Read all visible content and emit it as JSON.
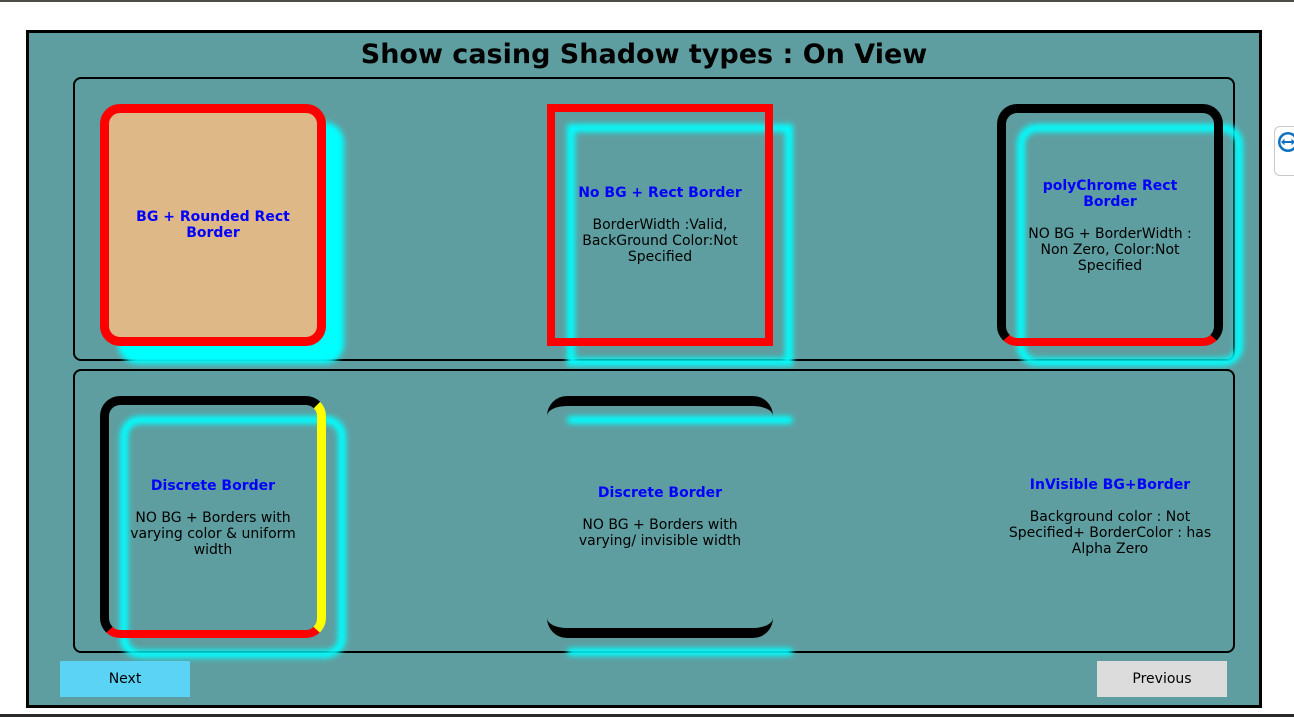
{
  "page": {
    "title": "Show casing Shadow types : On View"
  },
  "cards": {
    "bg_rounded": {
      "title": "BG + Rounded Rect Border",
      "description": ""
    },
    "no_bg_rect": {
      "title": "No BG + Rect Border",
      "description": "BorderWidth :Valid, BackGround Color:Not Specified"
    },
    "polychrome": {
      "title": "polyChrome Rect Border",
      "description": "NO BG + BorderWidth : Non Zero, Color:Not Specified"
    },
    "discrete_uniform": {
      "title": "Discrete Border",
      "description": "NO BG + Borders with varying color & uniform width"
    },
    "discrete_varying": {
      "title": "Discrete Border",
      "description": "NO BG + Borders with varying/ invisible width"
    },
    "invisible": {
      "title": "InVisible BG+Border",
      "description": "Background color : Not Specified+ BorderColor : has Alpha Zero"
    }
  },
  "buttons": {
    "next_label": "Next",
    "previous_label": "Previous"
  },
  "colors": {
    "page_background": "#5f9ea0",
    "card_background": "#deb887",
    "border_red": "#ff0000",
    "border_yellow": "#ffff00",
    "shadow_cyan": "#00ffff",
    "title_blue": "#0000ff",
    "next_button": "#5bd3f5",
    "previous_button": "#dcdcdc"
  },
  "icons": {
    "side_tab": "teamviewer-arrows-icon"
  }
}
